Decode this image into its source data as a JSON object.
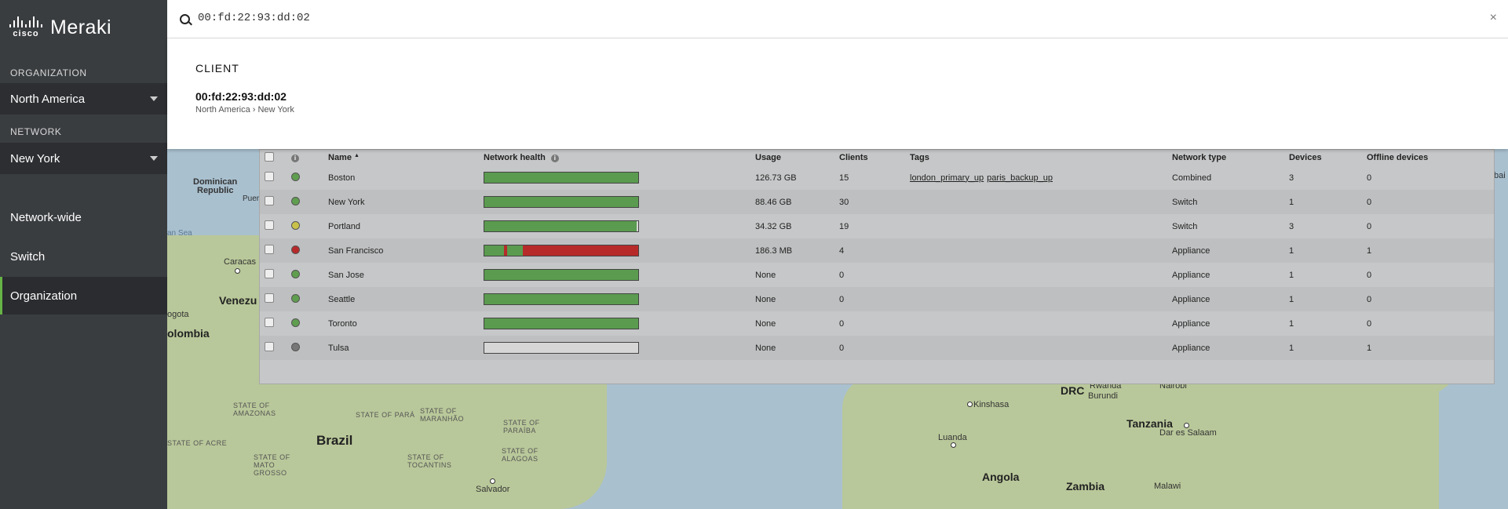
{
  "brand": {
    "company": "cisco",
    "product": "Meraki"
  },
  "sidebar": {
    "organization_label": "ORGANIZATION",
    "organization_value": "North America",
    "network_label": "NETWORK",
    "network_value": "New York",
    "nav": [
      {
        "label": "Network-wide"
      },
      {
        "label": "Switch"
      },
      {
        "label": "Organization",
        "active": true
      }
    ]
  },
  "search": {
    "value": "00:fd:22:93:dd:02",
    "close_glyph": "×"
  },
  "results": {
    "heading": "CLIENT",
    "items": [
      {
        "title": "00:fd:22:93:dd:02",
        "path": "North America › New York"
      }
    ]
  },
  "table": {
    "headers": {
      "name": "Name",
      "sort_glyph": "▲",
      "health": "Network health",
      "usage": "Usage",
      "clients": "Clients",
      "tags": "Tags",
      "type": "Network type",
      "devices": "Devices",
      "offline": "Offline devices"
    },
    "rows": [
      {
        "name": "Boston",
        "status": "#5f9e4f",
        "health": [
          {
            "color": "#5a9b4f",
            "pct": 100
          }
        ],
        "usage": "126.73 GB",
        "clients": "15",
        "tags": [
          "london_primary_up",
          "paris_backup_up"
        ],
        "type": "Combined",
        "devices": "3",
        "offline": "0"
      },
      {
        "name": "New York",
        "status": "#5f9e4f",
        "health": [
          {
            "color": "#5a9b4f",
            "pct": 100
          }
        ],
        "usage": "88.46 GB",
        "clients": "30",
        "tags": [],
        "type": "Switch",
        "devices": "1",
        "offline": "0"
      },
      {
        "name": "Portland",
        "status": "#c9c24a",
        "health": [
          {
            "color": "#5a9b4f",
            "pct": 99
          },
          {
            "color": "#d6d6d6",
            "pct": 1
          }
        ],
        "usage": "34.32 GB",
        "clients": "19",
        "tags": [],
        "type": "Switch",
        "devices": "3",
        "offline": "0"
      },
      {
        "name": "San Francisco",
        "status": "#b72a2a",
        "health": [
          {
            "color": "#5a9b4f",
            "pct": 13
          },
          {
            "color": "#b72a2a",
            "pct": 2
          },
          {
            "color": "#5a9b4f",
            "pct": 10
          },
          {
            "color": "#b72a2a",
            "pct": 75
          }
        ],
        "usage": "186.3 MB",
        "clients": "4",
        "tags": [],
        "type": "Appliance",
        "devices": "1",
        "offline": "1"
      },
      {
        "name": "San Jose",
        "status": "#5f9e4f",
        "health": [
          {
            "color": "#5a9b4f",
            "pct": 100
          }
        ],
        "usage": "None",
        "clients": "0",
        "tags": [],
        "type": "Appliance",
        "devices": "1",
        "offline": "0"
      },
      {
        "name": "Seattle",
        "status": "#5f9e4f",
        "health": [
          {
            "color": "#5a9b4f",
            "pct": 100
          }
        ],
        "usage": "None",
        "clients": "0",
        "tags": [],
        "type": "Appliance",
        "devices": "1",
        "offline": "0"
      },
      {
        "name": "Toronto",
        "status": "#5f9e4f",
        "health": [
          {
            "color": "#5a9b4f",
            "pct": 100
          }
        ],
        "usage": "None",
        "clients": "0",
        "tags": [],
        "type": "Appliance",
        "devices": "1",
        "offline": "0"
      },
      {
        "name": "Tulsa",
        "status": "#777777",
        "health": [],
        "usage": "None",
        "clients": "0",
        "tags": [],
        "type": "Appliance",
        "devices": "1",
        "offline": "1"
      }
    ]
  },
  "map": {
    "labels": {
      "dominican": "Dominican",
      "republic": "Republic",
      "puer": "Puer",
      "an_sea": "an Sea",
      "caracas": "Caracas",
      "venezu": "Venezu",
      "gota": "ogota",
      "olombia": "olombia",
      "brazil": "Brazil",
      "amazonas": "STATE OF\nAMAZONAS",
      "para": "STATE OF PARÁ",
      "maranhao": "STATE OF\nMARANHÃO",
      "paraiba": "STATE OF\nPARAÍBA",
      "acre": "STATE OF ACRE",
      "mato": "STATE OF\nMATO\nGROSSO",
      "tocantins": "STATE OF\nTOCANTINS",
      "alagoas": "STATE OF\nALAGOAS",
      "salvador": "Salvador",
      "drc": "DRC",
      "kinshasa": "Kinshasa",
      "luanda": "Luanda",
      "angola": "Angola",
      "zambia": "Zambia",
      "tanzania": "Tanzania",
      "dar": "Dar es Salaam",
      "burundi": "Burundi",
      "rwanda": "Rwanda",
      "nairobi": "Nairobi",
      "malawi": "Malawi",
      "bai": "bai"
    }
  },
  "colors": {
    "accent": "#67b346",
    "sidebar": "#3a3d40"
  }
}
